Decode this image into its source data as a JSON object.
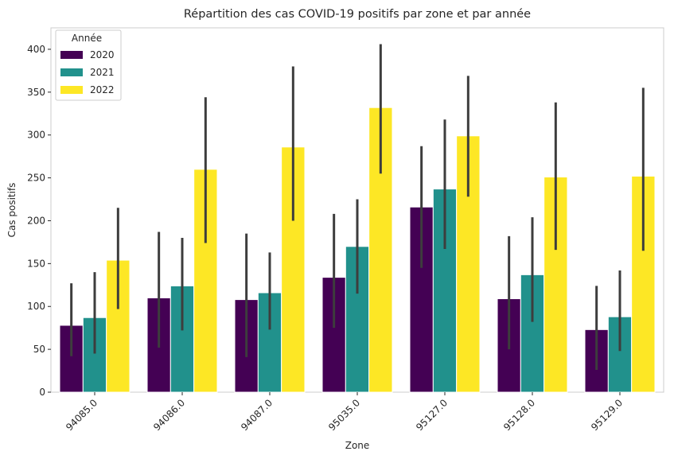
{
  "chart_data": {
    "type": "bar",
    "title": "Répartition des cas COVID-19 positifs par zone et par année",
    "xlabel": "Zone",
    "ylabel": "Cas positifs",
    "ylim": [
      0,
      425
    ],
    "yticks": [
      0,
      50,
      100,
      150,
      200,
      250,
      300,
      350,
      400
    ],
    "grid": false,
    "legend": {
      "title": "Année",
      "placement": "top-left"
    },
    "categories": [
      "94085.0",
      "94086.0",
      "94087.0",
      "95035.0",
      "95127.0",
      "95128.0",
      "95129.0"
    ],
    "series": [
      {
        "name": "2020",
        "color": "#440154",
        "values": [
          78,
          110,
          108,
          134,
          216,
          109,
          73
        ],
        "ci_low": [
          42,
          52,
          41,
          75,
          145,
          50,
          26
        ],
        "ci_high": [
          127,
          187,
          185,
          208,
          287,
          182,
          124
        ]
      },
      {
        "name": "2021",
        "color": "#21918c",
        "values": [
          87,
          124,
          116,
          170,
          237,
          137,
          88
        ],
        "ci_low": [
          45,
          72,
          73,
          115,
          167,
          82,
          48
        ],
        "ci_high": [
          140,
          180,
          163,
          225,
          318,
          204,
          142
        ]
      },
      {
        "name": "2022",
        "color": "#fde725",
        "values": [
          154,
          260,
          286,
          332,
          299,
          251,
          252
        ],
        "ci_low": [
          97,
          174,
          200,
          255,
          228,
          166,
          165
        ],
        "ci_high": [
          215,
          344,
          380,
          406,
          369,
          338,
          355
        ]
      }
    ]
  }
}
